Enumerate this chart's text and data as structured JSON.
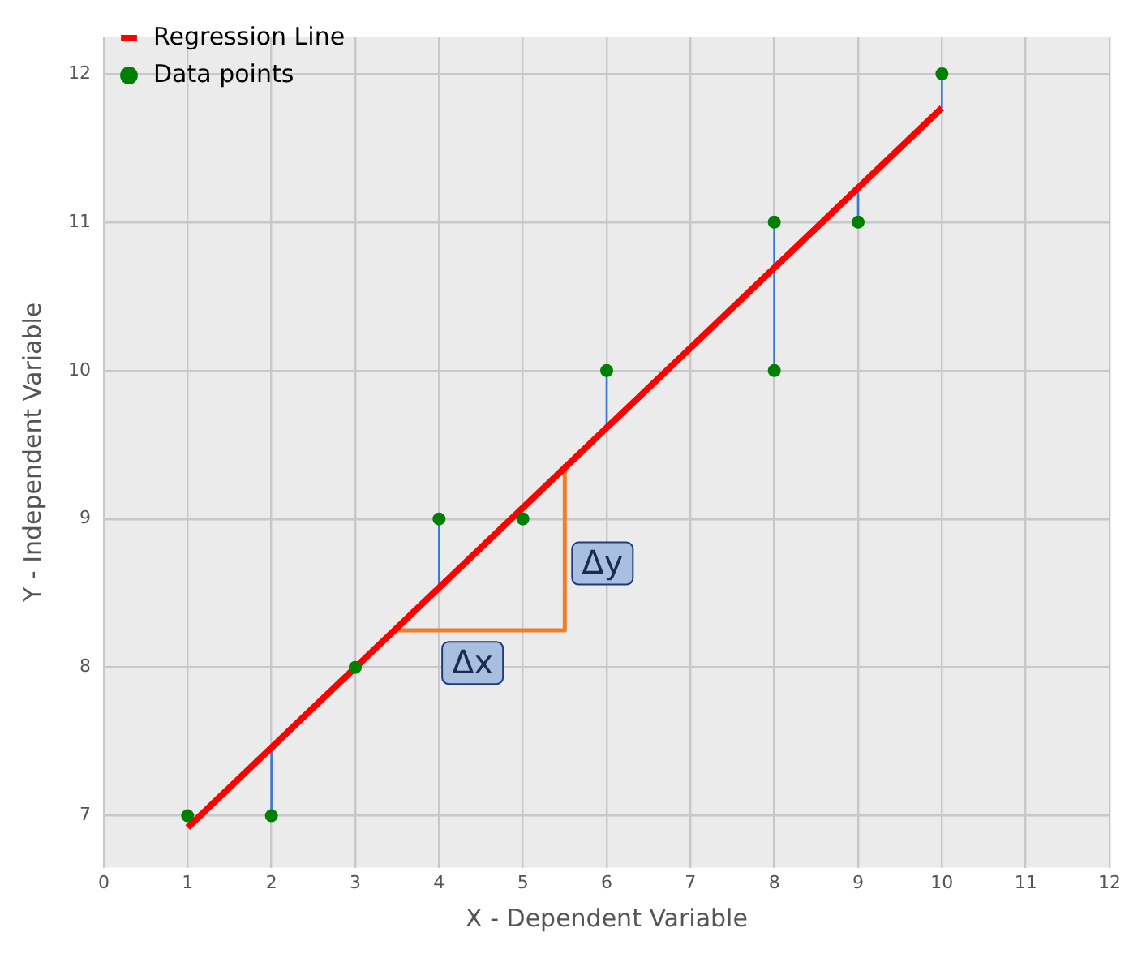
{
  "chart_data": {
    "type": "scatter",
    "xlabel": "X - Dependent Variable",
    "ylabel": "Y - Independent Variable",
    "series": [
      {
        "type": "line",
        "name": "Regression Line",
        "color": "#ff0000",
        "x": [
          1,
          10
        ],
        "values": [
          6.92,
          11.77
        ]
      },
      {
        "type": "line",
        "color": "#3a78d8",
        "x": [
          2,
          2
        ],
        "values": [
          7,
          7.46
        ]
      },
      {
        "type": "line",
        "color": "#3a78d8",
        "x": [
          4,
          4
        ],
        "values": [
          9,
          8.54
        ]
      },
      {
        "type": "line",
        "color": "#3a78d8",
        "x": [
          6,
          6
        ],
        "values": [
          10,
          9.62
        ]
      },
      {
        "type": "line",
        "color": "#3a78d8",
        "x": [
          8,
          8
        ],
        "values": [
          11,
          10
        ]
      },
      {
        "type": "line",
        "color": "#3a78d8",
        "x": [
          9,
          9
        ],
        "values": [
          11,
          11.23
        ]
      },
      {
        "type": "line",
        "color": "#3a78d8",
        "x": [
          10,
          10
        ],
        "values": [
          12,
          11.77
        ]
      },
      {
        "type": "line",
        "color": "#f07f2a",
        "x": [
          3.5,
          5.5,
          5.5
        ],
        "values": [
          8.25,
          8.25,
          9.37
        ]
      },
      {
        "name": "Data points",
        "marker": "circle",
        "color": "#008000",
        "x": [
          1,
          2,
          3,
          4,
          5,
          6,
          8,
          8,
          9,
          10
        ],
        "values": [
          7,
          7,
          8,
          9,
          9,
          10,
          11,
          10,
          11,
          12
        ]
      }
    ],
    "annotations": [
      {
        "text": "Δx",
        "x": 4.4,
        "y": 8.03
      },
      {
        "text": "Δy",
        "x": 5.95,
        "y": 8.7
      }
    ],
    "xlim": [
      0,
      12
    ],
    "xticks": [
      0,
      1,
      2,
      3,
      4,
      5,
      6,
      7,
      8,
      9,
      10,
      11,
      12
    ],
    "ylim": [
      6.65,
      12.25
    ],
    "yticks": [
      7,
      8,
      9,
      10,
      11,
      12
    ],
    "grid": true,
    "legend": "top left"
  }
}
